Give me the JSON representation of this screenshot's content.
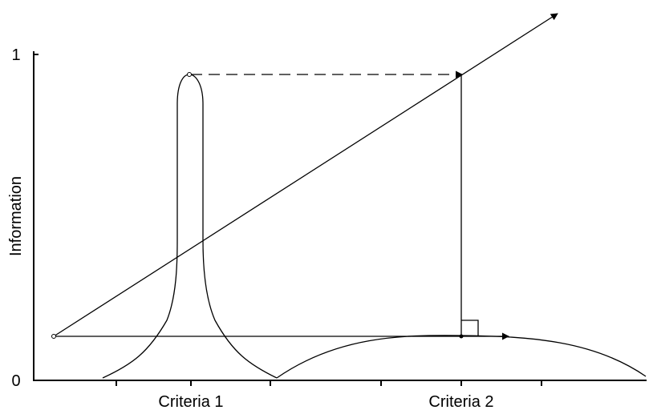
{
  "y_axis": {
    "label": "Information",
    "top_label": "1",
    "bottom_label": "0"
  },
  "x_axis": {
    "labels": [
      "Criteria 1",
      "Criteria 2"
    ]
  }
}
